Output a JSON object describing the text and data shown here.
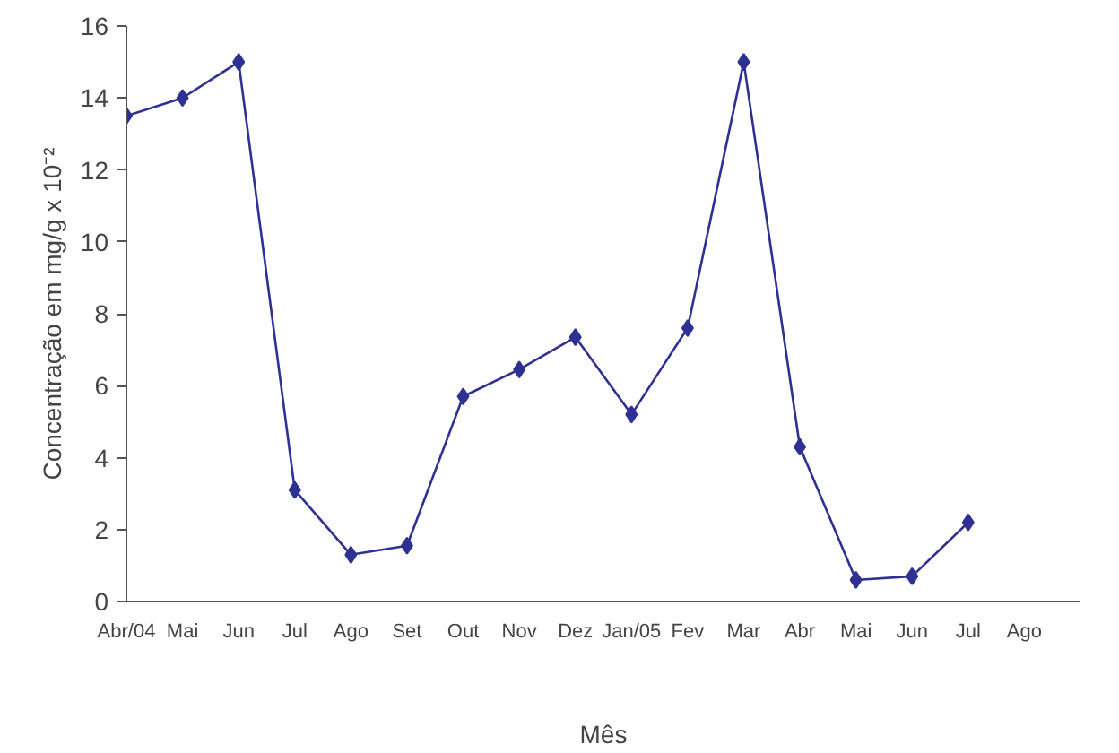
{
  "chart_data": {
    "type": "line",
    "xlabel": "Mês",
    "ylabel": "Concentração em mg/g x 10⁻²",
    "categories": [
      "Abr/04",
      "Mai",
      "Jun",
      "Jul",
      "Ago",
      "Set",
      "Out",
      "Nov",
      "Dez",
      "Jan/05",
      "Fev",
      "Mar",
      "Abr",
      "Mai",
      "Jun",
      "Jul",
      "Ago"
    ],
    "series": [
      {
        "color": "#2e3192",
        "values": [
          13.5,
          14,
          15,
          3.1,
          1.3,
          1.55,
          5.7,
          6.45,
          7.35,
          5.2,
          7.6,
          15.0,
          4.3,
          0.6,
          0.7,
          2.2,
          null
        ]
      }
    ],
    "ylim": [
      0,
      16
    ],
    "yticks": [
      0,
      2,
      4,
      6,
      8,
      10,
      12,
      14,
      16
    ],
    "grid": false,
    "marker": "diamond",
    "line_style": "solid"
  }
}
